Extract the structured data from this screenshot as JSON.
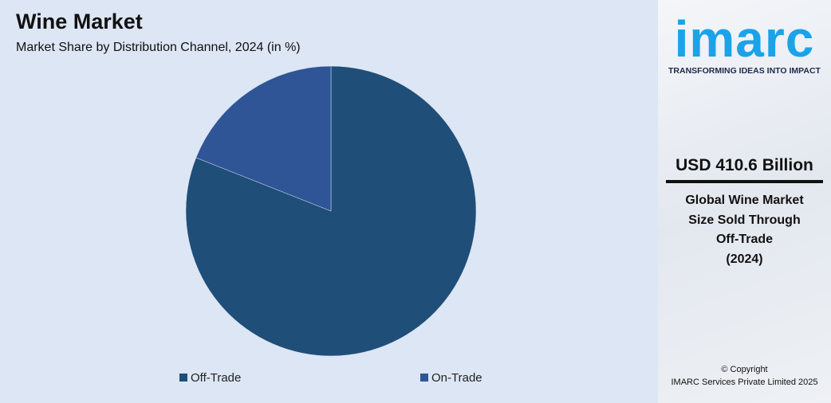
{
  "chart_data": {
    "type": "pie",
    "title": "Wine Market",
    "subtitle": "Market Share by Distribution Channel, 2024 (in %)",
    "categories": [
      "Off-Trade",
      "On-Trade"
    ],
    "values": [
      81,
      19
    ],
    "colors": [
      "#1f4e79",
      "#2f5597"
    ],
    "legend": "bottom"
  },
  "sidebar": {
    "logo": "imarc",
    "tagline": "TRANSFORMING IDEAS INTO IMPACT",
    "headline": "USD 410.6 Billion",
    "description": [
      "Global Wine Market",
      "Size Sold Through",
      "Off-Trade",
      "(2024)"
    ],
    "copyright": [
      "© Copyright",
      "IMARC Services Private Limited 2025"
    ]
  }
}
